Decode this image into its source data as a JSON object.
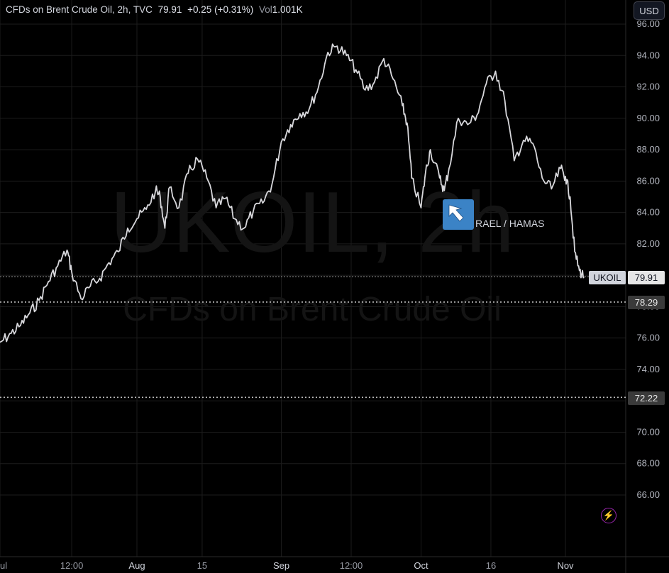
{
  "header": {
    "title": "CFDs on Brent Crude Oil, 2h, TVC",
    "price": "79.91",
    "change": "+0.25 (+0.31%)",
    "vol_label": "Vol",
    "vol_value": "1.001K"
  },
  "currency_button": "USD",
  "watermark": {
    "symbol": "UKOIL, 2h",
    "description": "CFDs on Brent Crude Oil"
  },
  "annotation": {
    "text": "RAEL / HAMAS",
    "icon": "cursor-arrow-icon"
  },
  "price_labels": {
    "symbol": "UKOIL",
    "last": "79.91",
    "level_1": "78.29",
    "level_2": "72.22"
  },
  "icons": {
    "bolt": "lightning-bolt-icon"
  },
  "colors": {
    "line": "#d8d8dc",
    "background": "#000000",
    "grid": "#1c1c1c",
    "annotation_bg": "#3b83c6",
    "bolt": "#9c27b0"
  },
  "chart_data": {
    "type": "line",
    "title": "CFDs on Brent Crude Oil, 2h, TVC",
    "y_ticks": [
      66,
      68,
      70,
      72,
      74,
      76,
      78,
      80,
      82,
      84,
      86,
      88,
      90,
      92,
      94,
      96
    ],
    "y_tick_labels": [
      "66.00",
      "68.00",
      "70.00",
      "72.00",
      "74.00",
      "76.00",
      "78.00",
      "80.00",
      "82.00",
      "84.00",
      "86.00",
      "88.00",
      "90.00",
      "92.00",
      "94.00",
      "96.00"
    ],
    "ylim": [
      64,
      96.5
    ],
    "x_ticks": [
      "Jul",
      "12:00",
      "Aug",
      "15",
      "Sep",
      "12:00",
      "Oct",
      "16",
      "Nov"
    ],
    "x_tick_labels": [
      "ul",
      "12:00",
      "Aug",
      "15",
      "Sep",
      "12:00",
      "Oct",
      "16",
      "Nov"
    ],
    "horizontal_levels": [
      79.91,
      78.29,
      72.22
    ],
    "series": [
      {
        "points": [
          [
            "Jul 01",
            75.2
          ],
          [
            "Jul 03",
            75.8
          ],
          [
            "Jul 05",
            76.3
          ],
          [
            "Jul 07",
            76.8
          ],
          [
            "Jul 09",
            77.6
          ],
          [
            "Jul 11",
            78.4
          ],
          [
            "Jul 13",
            79.6
          ],
          [
            "Jul 15",
            80.6
          ],
          [
            "Jul 17",
            81.6
          ],
          [
            "Jul 18",
            80.2
          ],
          [
            "Jul 20",
            78.5
          ],
          [
            "Jul 22",
            79.3
          ],
          [
            "Jul 24",
            79.8
          ],
          [
            "Jul 26",
            80.8
          ],
          [
            "Jul 28",
            81.5
          ],
          [
            "Jul 30",
            83.0
          ],
          [
            "Aug 01",
            83.6
          ],
          [
            "Aug 03",
            84.2
          ],
          [
            "Aug 05",
            85.4
          ],
          [
            "Aug 06",
            85.0
          ],
          [
            "Aug 07",
            83.0
          ],
          [
            "Aug 08",
            85.6
          ],
          [
            "Aug 10",
            84.3
          ],
          [
            "Aug 12",
            86.5
          ],
          [
            "Aug 14",
            87.4
          ],
          [
            "Aug 16",
            86.2
          ],
          [
            "Aug 18",
            84.3
          ],
          [
            "Aug 20",
            84.9
          ],
          [
            "Aug 22",
            83.6
          ],
          [
            "Aug 24",
            83.0
          ],
          [
            "Aug 26",
            84.1
          ],
          [
            "Aug 28",
            84.6
          ],
          [
            "Aug 30",
            85.8
          ],
          [
            "Sep 01",
            88.5
          ],
          [
            "Sep 03",
            89.6
          ],
          [
            "Sep 05",
            90.3
          ],
          [
            "Sep 07",
            90.6
          ],
          [
            "Sep 09",
            92.0
          ],
          [
            "Sep 11",
            94.2
          ],
          [
            "Sep 13",
            94.6
          ],
          [
            "Sep 15",
            94.0
          ],
          [
            "Sep 17",
            93.1
          ],
          [
            "Sep 19",
            91.8
          ],
          [
            "Sep 21",
            92.3
          ],
          [
            "Sep 23",
            93.8
          ],
          [
            "Sep 25",
            92.5
          ],
          [
            "Sep 27",
            90.8
          ],
          [
            "Sep 28",
            89.7
          ],
          [
            "Sep 29",
            86.2
          ],
          [
            "Oct 01",
            84.3
          ],
          [
            "Oct 02",
            86.6
          ],
          [
            "Oct 03",
            88.0
          ],
          [
            "Oct 05",
            86.2
          ],
          [
            "Oct 06",
            85.4
          ],
          [
            "Oct 07",
            86.8
          ],
          [
            "Oct 09",
            90.0
          ],
          [
            "Oct 11",
            89.6
          ],
          [
            "Oct 13",
            90.2
          ],
          [
            "Oct 15",
            92.2
          ],
          [
            "Oct 17",
            93.0
          ],
          [
            "Oct 19",
            91.1
          ],
          [
            "Oct 21",
            87.3
          ],
          [
            "Oct 23",
            88.6
          ],
          [
            "Oct 25",
            88.4
          ],
          [
            "Oct 27",
            86.2
          ],
          [
            "Oct 29",
            85.5
          ],
          [
            "Oct 31",
            86.8
          ],
          [
            "Nov 01",
            86.3
          ],
          [
            "Nov 02",
            85.0
          ],
          [
            "Nov 03",
            81.5
          ],
          [
            "Nov 04",
            80.3
          ],
          [
            "Nov 05",
            79.91
          ]
        ]
      }
    ]
  }
}
